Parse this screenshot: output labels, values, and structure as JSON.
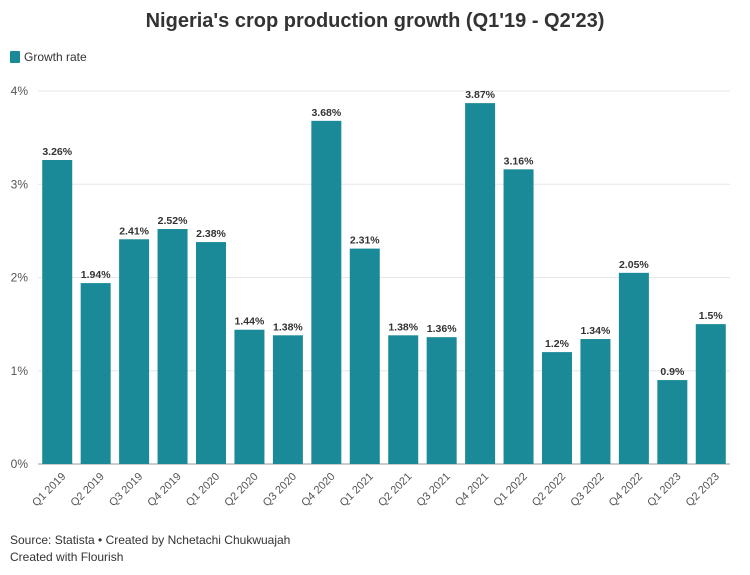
{
  "colors": {
    "bar": "#1a8a98",
    "grid": "#e6e6e6",
    "axis": "#999999",
    "text": "#333333"
  },
  "title": "Nigeria's crop production growth (Q1'19 - Q2'23)",
  "legend": {
    "label": "Growth rate"
  },
  "footer": {
    "source": "Source: Statista • Created by Nchetachi Chukwuajah",
    "credit": "Created with Flourish"
  },
  "chart_data": {
    "type": "bar",
    "title": "Nigeria's crop production growth (Q1'19 - Q2'23)",
    "categories": [
      "Q1 2019",
      "Q2 2019",
      "Q3 2019",
      "Q4 2019",
      "Q1 2020",
      "Q2 2020",
      "Q3 2020",
      "Q4 2020",
      "Q1 2021",
      "Q2 2021",
      "Q3 2021",
      "Q4 2021",
      "Q1 2022",
      "Q2 2022",
      "Q3 2022",
      "Q4 2022",
      "Q1 2023",
      "Q2 2023"
    ],
    "series": [
      {
        "name": "Growth rate",
        "values": [
          3.26,
          1.94,
          2.41,
          2.52,
          2.38,
          1.44,
          1.38,
          3.68,
          2.31,
          1.38,
          1.36,
          3.87,
          3.16,
          1.2,
          1.34,
          2.05,
          0.9,
          1.5
        ],
        "labels": [
          "3.26%",
          "1.94%",
          "2.41%",
          "2.52%",
          "2.38%",
          "1.44%",
          "1.38%",
          "3.68%",
          "2.31%",
          "1.38%",
          "1.36%",
          "3.87%",
          "3.16%",
          "1.2%",
          "1.34%",
          "2.05%",
          "0.9%",
          "1.5%"
        ]
      }
    ],
    "yticks": [
      0,
      1,
      2,
      3,
      4
    ],
    "ytick_labels": [
      "0%",
      "1%",
      "2%",
      "3%",
      "4%"
    ],
    "ylim": [
      0,
      4
    ],
    "legend_position": "top-left",
    "grid": true
  }
}
